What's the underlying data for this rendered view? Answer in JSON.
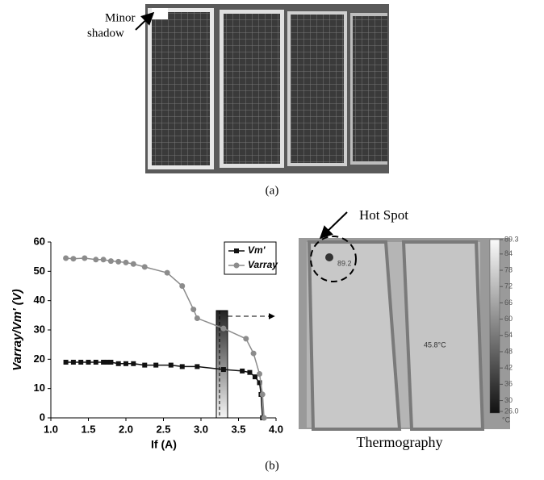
{
  "photo": {
    "annotation_line1": "Minor",
    "annotation_line2": "shadow",
    "caption": "(a)"
  },
  "chart_data": {
    "type": "line",
    "y_label": "Varray/Vm' (V)",
    "x_label": "If (A)",
    "xlim": [
      1.0,
      4.0
    ],
    "xticks": [
      {
        "value": 1.0,
        "label": "1.0"
      },
      {
        "value": 1.5,
        "label": "1.5"
      },
      {
        "value": 2.0,
        "label": "2.0"
      },
      {
        "value": 2.5,
        "label": "2.5"
      },
      {
        "value": 3.0,
        "label": "3.0"
      },
      {
        "value": 3.5,
        "label": "3.5"
      },
      {
        "value": 4.0,
        "label": "4.0"
      }
    ],
    "ylim": [
      0,
      60
    ],
    "yticks": [
      0,
      10,
      20,
      30,
      40,
      50,
      60
    ],
    "legend": "upper right",
    "series": [
      {
        "name": "Vm'",
        "color": "#111111",
        "marker": "square",
        "x": [
          1.2,
          1.3,
          1.4,
          1.5,
          1.6,
          1.7,
          1.75,
          1.8,
          1.9,
          2.0,
          2.1,
          2.25,
          2.4,
          2.6,
          2.75,
          2.95,
          3.3,
          3.55,
          3.65,
          3.72,
          3.78,
          3.8,
          3.82
        ],
        "values": [
          19,
          19,
          19,
          19,
          19,
          19,
          19,
          19,
          18.5,
          18.5,
          18.5,
          18,
          18,
          18,
          17.5,
          17.5,
          16.5,
          16,
          15.5,
          14,
          12,
          8,
          0
        ]
      },
      {
        "name": "Varray",
        "color": "#8c8c8c",
        "marker": "circle",
        "x": [
          1.2,
          1.3,
          1.45,
          1.6,
          1.7,
          1.8,
          1.9,
          2.0,
          2.1,
          2.25,
          2.55,
          2.75,
          2.9,
          2.95,
          3.3,
          3.6,
          3.7,
          3.78,
          3.82,
          3.84
        ],
        "values": [
          54.5,
          54.3,
          54.5,
          54,
          54,
          53.5,
          53.3,
          53,
          52.5,
          51.5,
          49.5,
          45,
          37,
          34,
          30.5,
          27,
          22,
          15,
          8,
          0
        ]
      }
    ]
  },
  "thermography": {
    "title": "Thermography",
    "hotspot_label": "Hot Spot",
    "spot_temp": "89.2",
    "panel_temp": "45.8°C",
    "unit": "°C",
    "colorbar_ticks": [
      89.3,
      84,
      78,
      72,
      66,
      60,
      54,
      48,
      42,
      36,
      30,
      {
        "value": 26,
        "label": "26.0"
      }
    ]
  },
  "caption_b": "(b)"
}
